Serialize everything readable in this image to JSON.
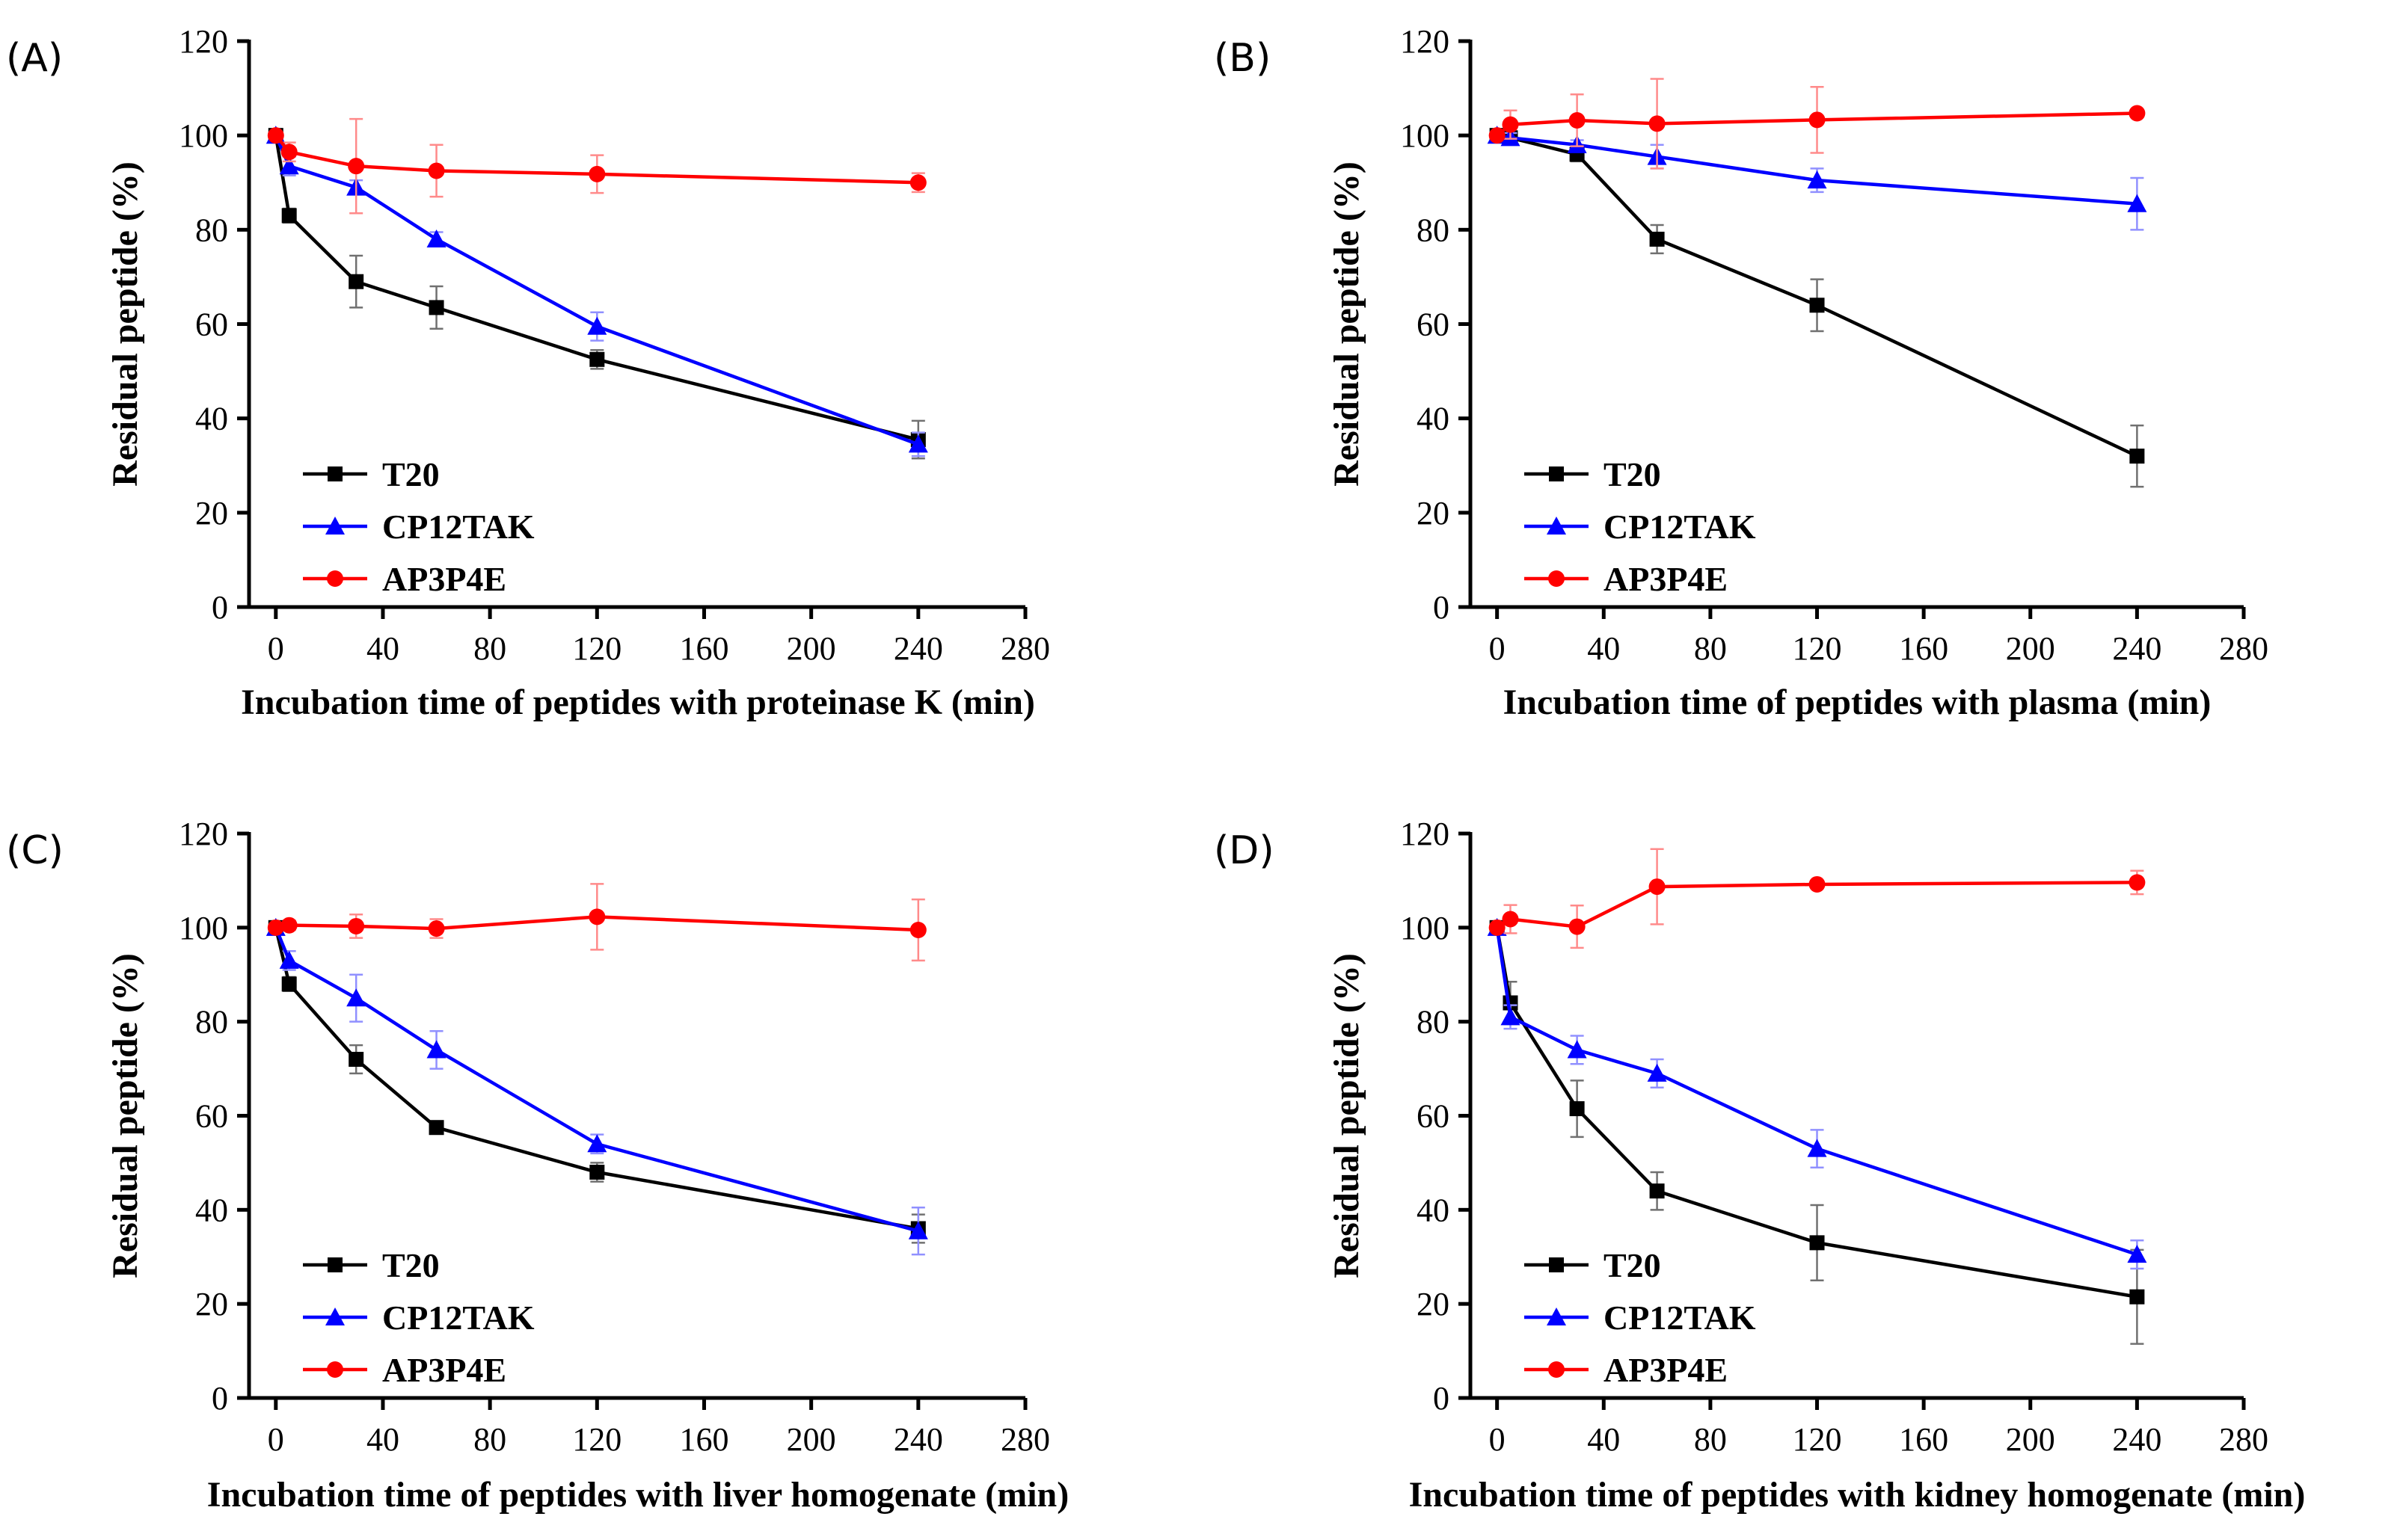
{
  "figure": {
    "panels": [
      {
        "letter": "(A)",
        "title": "Incubation time of peptides with proteinase K (min)",
        "ylabel": "Residual peptide (%)"
      },
      {
        "letter": "(B)",
        "title": "Incubation time of peptides with plasma (min)",
        "ylabel": "Residual peptide (%)"
      },
      {
        "letter": "(C)",
        "title": "Incubation time of peptides with liver homogenate (min)",
        "ylabel": "Residual peptide (%)"
      },
      {
        "letter": "(D)",
        "title": "Incubation time of peptides with kidney homogenate (min)",
        "ylabel": "Residual peptide (%)"
      }
    ],
    "legend": [
      "T20",
      "CP12TAK",
      "AP3P4E"
    ]
  },
  "colors": {
    "T20": "#000000",
    "CP12TAK": "#0000ff",
    "AP3P4E": "#ff0000",
    "CP12TAK_err": "#9090ff",
    "AP3P4E_err": "#ff8a8a",
    "T20_err": "#707070"
  },
  "chart_data": [
    {
      "type": "line",
      "title": "(A)",
      "xlabel": "Incubation time of peptides with proteinase K (min)",
      "ylabel": "Residual peptide (%)",
      "xlim": [
        -10,
        280
      ],
      "ylim": [
        0,
        120
      ],
      "xticks": [
        0,
        40,
        80,
        120,
        160,
        200,
        240,
        280
      ],
      "yticks": [
        0,
        20,
        40,
        60,
        80,
        100,
        120
      ],
      "x": [
        0,
        5,
        30,
        60,
        120,
        240
      ],
      "series": [
        {
          "name": "T20",
          "marker": "square",
          "values": [
            100,
            83,
            69,
            63.5,
            52.5,
            35.5
          ],
          "errors": [
            0,
            1.5,
            5.5,
            4.5,
            2,
            4
          ]
        },
        {
          "name": "CP12TAK",
          "marker": "triangle",
          "values": [
            100,
            93.5,
            89,
            78,
            59.5,
            34.5
          ],
          "errors": [
            0,
            2,
            1.5,
            1.5,
            3,
            2.5
          ]
        },
        {
          "name": "AP3P4E",
          "marker": "circle",
          "values": [
            100,
            96.5,
            93.5,
            92.5,
            91.8,
            90
          ],
          "errors": [
            0,
            2,
            10,
            5.5,
            4,
            2
          ]
        }
      ]
    },
    {
      "type": "line",
      "title": "(B)",
      "xlabel": "Incubation time of peptides with plasma (min)",
      "ylabel": "Residual peptide (%)",
      "xlim": [
        -10,
        280
      ],
      "ylim": [
        0,
        120
      ],
      "xticks": [
        0,
        40,
        80,
        120,
        160,
        200,
        240,
        280
      ],
      "yticks": [
        0,
        20,
        40,
        60,
        80,
        100,
        120
      ],
      "x": [
        0,
        5,
        30,
        60,
        120,
        240
      ],
      "series": [
        {
          "name": "T20",
          "marker": "square",
          "values": [
            100,
            99.5,
            96,
            78,
            64,
            32
          ],
          "errors": [
            0,
            1,
            1.5,
            3,
            5.5,
            6.5
          ]
        },
        {
          "name": "CP12TAK",
          "marker": "triangle",
          "values": [
            100,
            99.5,
            98,
            95.5,
            90.5,
            85.5
          ],
          "errors": [
            0,
            1,
            1,
            2.5,
            2.5,
            5.5
          ]
        },
        {
          "name": "AP3P4E",
          "marker": "circle",
          "values": [
            100,
            102.3,
            103.2,
            102.5,
            103.3,
            104.7
          ],
          "errors": [
            0,
            3,
            5.5,
            9.5,
            7,
            0.8
          ]
        }
      ]
    },
    {
      "type": "line",
      "title": "(C)",
      "xlabel": "Incubation time of peptides with liver homogenate (min)",
      "ylabel": "Residual peptide (%)",
      "xlim": [
        -10,
        280
      ],
      "ylim": [
        0,
        120
      ],
      "xticks": [
        0,
        40,
        80,
        120,
        160,
        200,
        240,
        280
      ],
      "yticks": [
        0,
        20,
        40,
        60,
        80,
        100,
        120
      ],
      "x": [
        0,
        5,
        30,
        60,
        120,
        240
      ],
      "series": [
        {
          "name": "T20",
          "marker": "square",
          "values": [
            100,
            88,
            72,
            57.5,
            48,
            36
          ],
          "errors": [
            0,
            1.5,
            3,
            1,
            2,
            3
          ]
        },
        {
          "name": "CP12TAK",
          "marker": "triangle",
          "values": [
            100,
            93,
            85,
            74,
            54,
            35.5
          ],
          "errors": [
            0,
            2,
            5,
            4,
            2,
            5
          ]
        },
        {
          "name": "AP3P4E",
          "marker": "circle",
          "values": [
            100,
            100.5,
            100.3,
            99.8,
            102.3,
            99.5
          ],
          "errors": [
            0,
            1,
            2.5,
            2,
            7,
            6.5
          ]
        }
      ]
    },
    {
      "type": "line",
      "title": "(D)",
      "xlabel": "Incubation time of peptides with kidney homogenate (min)",
      "ylabel": "Residual peptide (%)",
      "xlim": [
        -10,
        280
      ],
      "ylim": [
        0,
        120
      ],
      "xticks": [
        0,
        40,
        80,
        120,
        160,
        200,
        240,
        280
      ],
      "yticks": [
        0,
        20,
        40,
        60,
        80,
        100,
        120
      ],
      "x": [
        0,
        5,
        30,
        60,
        120,
        240
      ],
      "series": [
        {
          "name": "T20",
          "marker": "square",
          "values": [
            100,
            84,
            61.5,
            44,
            33,
            21.5
          ],
          "errors": [
            0,
            4.5,
            6,
            4,
            8,
            10
          ]
        },
        {
          "name": "CP12TAK",
          "marker": "triangle",
          "values": [
            100,
            81,
            74,
            69,
            53,
            30.5
          ],
          "errors": [
            0,
            2.5,
            3,
            3,
            4,
            3
          ]
        },
        {
          "name": "AP3P4E",
          "marker": "circle",
          "values": [
            100,
            101.8,
            100.2,
            108.7,
            109.2,
            109.6
          ],
          "errors": [
            0,
            3,
            4.5,
            8,
            0.8,
            2.5
          ]
        }
      ]
    }
  ]
}
